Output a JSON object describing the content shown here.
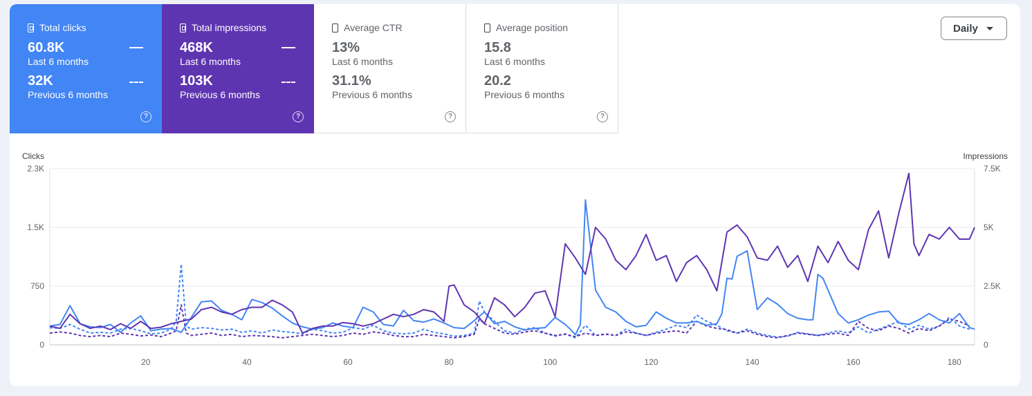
{
  "metrics": {
    "clicks": {
      "title": "Total clicks",
      "value": "60.8K",
      "period": "Last 6 months",
      "prev_value": "32K",
      "prev_period": "Previous 6 months",
      "help": "?"
    },
    "impressions": {
      "title": "Total impressions",
      "value": "468K",
      "period": "Last 6 months",
      "prev_value": "103K",
      "prev_period": "Previous 6 months",
      "help": "?"
    },
    "ctr": {
      "title": "Average CTR",
      "value": "13%",
      "period": "Last 6 months",
      "prev_value": "31.1%",
      "prev_period": "Previous 6 months",
      "help": "?"
    },
    "position": {
      "title": "Average position",
      "value": "15.8",
      "period": "Last 6 months",
      "prev_value": "20.2",
      "prev_period": "Previous 6 months",
      "help": "?"
    }
  },
  "controls": {
    "granularity": "Daily"
  },
  "colors": {
    "clicks": "#4285f4",
    "impressions": "#5e35b1",
    "grid": "#e8eaed",
    "axis_text": "#5f6368"
  },
  "chart_data": {
    "type": "line",
    "left_axis_label": "Clicks",
    "right_axis_label": "Impressions",
    "left_ticks": [
      {
        "value": 0,
        "label": "0"
      },
      {
        "value": 750,
        "label": "750"
      },
      {
        "value": 1500,
        "label": "1.5K"
      },
      {
        "value": 2250,
        "label": "2.3K"
      }
    ],
    "right_ticks": [
      {
        "value": 0,
        "label": "0"
      },
      {
        "value": 2500,
        "label": "2.5K"
      },
      {
        "value": 5000,
        "label": "5K"
      },
      {
        "value": 7500,
        "label": "7.5K"
      }
    ],
    "x_ticks": [
      20,
      40,
      60,
      80,
      100,
      120,
      140,
      160,
      180
    ],
    "xlim": [
      1,
      184
    ],
    "ylim_left": [
      0,
      2250
    ],
    "ylim_right": [
      0,
      7500
    ],
    "series": [
      {
        "name": "Clicks (Last 6 months)",
        "axis": "left",
        "style": "solid",
        "color": "#4285f4",
        "x": [
          1,
          3,
          5,
          7,
          9,
          11,
          13,
          15,
          17,
          19,
          21,
          23,
          25,
          27,
          29,
          31,
          33,
          35,
          37,
          39,
          41,
          43,
          45,
          47,
          49,
          51,
          53,
          55,
          57,
          59,
          61,
          63,
          65,
          67,
          69,
          71,
          73,
          75,
          77,
          79,
          81,
          83,
          85,
          87,
          89,
          91,
          93,
          95,
          97,
          99,
          101,
          103,
          104,
          105,
          106,
          107,
          109,
          111,
          113,
          115,
          117,
          119,
          121,
          123,
          125,
          127,
          129,
          131,
          133,
          134,
          135,
          136,
          137,
          139,
          141,
          143,
          145,
          147,
          149,
          151,
          152,
          153,
          154,
          155,
          157,
          159,
          161,
          163,
          165,
          167,
          169,
          171,
          173,
          175,
          177,
          179,
          181,
          183,
          184
        ],
        "y": [
          240,
          260,
          500,
          270,
          230,
          220,
          260,
          160,
          280,
          370,
          180,
          200,
          210,
          160,
          350,
          550,
          560,
          440,
          390,
          320,
          580,
          540,
          470,
          370,
          280,
          230,
          200,
          220,
          280,
          240,
          220,
          480,
          420,
          260,
          240,
          440,
          310,
          290,
          330,
          280,
          220,
          210,
          310,
          420,
          270,
          300,
          230,
          190,
          210,
          220,
          350,
          260,
          200,
          130,
          260,
          1850,
          700,
          480,
          420,
          300,
          230,
          250,
          420,
          340,
          280,
          280,
          300,
          250,
          270,
          400,
          850,
          840,
          1130,
          1200,
          450,
          600,
          520,
          400,
          340,
          320,
          320,
          900,
          850,
          700,
          400,
          280,
          320,
          380,
          420,
          430,
          280,
          260,
          320,
          400,
          320,
          280,
          400,
          220,
          200
        ]
      },
      {
        "name": "Impressions (Last 6 months)",
        "axis": "right",
        "style": "solid",
        "color": "#5e35b1",
        "x": [
          1,
          3,
          5,
          7,
          9,
          11,
          13,
          15,
          17,
          19,
          21,
          23,
          25,
          27,
          29,
          31,
          33,
          35,
          37,
          39,
          41,
          43,
          45,
          47,
          49,
          51,
          53,
          55,
          57,
          59,
          61,
          63,
          65,
          67,
          69,
          71,
          73,
          75,
          77,
          79,
          80,
          81,
          83,
          85,
          87,
          89,
          91,
          93,
          95,
          97,
          99,
          101,
          103,
          105,
          107,
          109,
          111,
          113,
          115,
          117,
          119,
          121,
          123,
          125,
          127,
          129,
          131,
          133,
          135,
          137,
          139,
          141,
          143,
          145,
          147,
          149,
          151,
          153,
          155,
          157,
          159,
          161,
          163,
          165,
          167,
          169,
          171,
          172,
          173,
          175,
          177,
          179,
          181,
          183,
          184
        ],
        "y": [
          800,
          700,
          1300,
          900,
          700,
          800,
          650,
          900,
          700,
          1000,
          700,
          750,
          900,
          1000,
          1100,
          1500,
          1600,
          1400,
          1300,
          1500,
          1600,
          1600,
          1900,
          1700,
          1400,
          500,
          700,
          800,
          800,
          950,
          900,
          800,
          900,
          1100,
          1300,
          1200,
          1300,
          1500,
          1400,
          1000,
          2500,
          2550,
          1700,
          1400,
          900,
          2000,
          1700,
          1200,
          1600,
          2200,
          2300,
          1200,
          4300,
          3700,
          3000,
          5000,
          4500,
          3600,
          3200,
          3800,
          4700,
          3600,
          3800,
          2700,
          3500,
          3800,
          3200,
          2300,
          4800,
          5100,
          4600,
          3700,
          3600,
          4200,
          3300,
          3800,
          2700,
          4200,
          3500,
          4400,
          3600,
          3200,
          4900,
          5700,
          3700,
          5600,
          7300,
          4300,
          3800,
          4700,
          4500,
          5000,
          4500,
          4500,
          5000
        ]
      },
      {
        "name": "Clicks (Previous 6 months)",
        "axis": "left",
        "style": "dashed",
        "color": "#4285f4",
        "x": [
          1,
          3,
          5,
          7,
          9,
          11,
          13,
          15,
          17,
          19,
          21,
          23,
          25,
          26,
          27,
          28,
          29,
          31,
          33,
          35,
          37,
          39,
          41,
          43,
          45,
          47,
          49,
          51,
          53,
          55,
          57,
          59,
          61,
          63,
          65,
          67,
          69,
          71,
          73,
          75,
          77,
          79,
          81,
          83,
          85,
          86,
          87,
          89,
          91,
          93,
          95,
          97,
          99,
          101,
          103,
          105,
          107,
          109,
          111,
          113,
          115,
          117,
          119,
          121,
          123,
          125,
          127,
          129,
          131,
          133,
          135,
          137,
          139,
          141,
          143,
          145,
          147,
          149,
          151,
          153,
          155,
          157,
          159,
          161,
          163,
          165,
          167,
          169,
          171,
          173,
          175,
          177,
          179,
          181,
          183
        ],
        "y": [
          220,
          210,
          260,
          200,
          150,
          160,
          150,
          200,
          210,
          180,
          140,
          150,
          200,
          300,
          1030,
          240,
          200,
          220,
          210,
          190,
          200,
          160,
          180,
          150,
          190,
          170,
          160,
          140,
          200,
          180,
          150,
          160,
          220,
          200,
          250,
          180,
          150,
          140,
          150,
          200,
          160,
          140,
          110,
          120,
          150,
          560,
          420,
          300,
          180,
          150,
          200,
          220,
          150,
          110,
          140,
          90,
          250,
          120,
          140,
          120,
          200,
          150,
          120,
          160,
          200,
          250,
          220,
          380,
          300,
          250,
          180,
          150,
          200,
          150,
          120,
          100,
          110,
          160,
          140,
          120,
          150,
          180,
          150,
          230,
          150,
          200,
          250,
          300,
          200,
          250,
          200,
          240,
          350,
          240,
          200
        ]
      },
      {
        "name": "Impressions (Previous 6 months)",
        "axis": "right",
        "style": "dashed",
        "color": "#5e35b1",
        "x": [
          1,
          3,
          5,
          7,
          9,
          11,
          13,
          15,
          17,
          19,
          21,
          23,
          25,
          26,
          27,
          28,
          29,
          31,
          33,
          35,
          37,
          39,
          41,
          43,
          45,
          47,
          49,
          51,
          53,
          55,
          57,
          59,
          61,
          63,
          65,
          67,
          69,
          71,
          73,
          75,
          77,
          79,
          81,
          83,
          85,
          86,
          87,
          89,
          91,
          93,
          95,
          97,
          99,
          101,
          103,
          105,
          107,
          109,
          111,
          113,
          115,
          117,
          119,
          121,
          123,
          125,
          127,
          129,
          131,
          133,
          135,
          137,
          139,
          141,
          143,
          145,
          147,
          149,
          151,
          153,
          155,
          157,
          159,
          161,
          163,
          165,
          167,
          169,
          171,
          173,
          175,
          177,
          179,
          181,
          183
        ],
        "y": [
          500,
          550,
          500,
          400,
          350,
          400,
          350,
          500,
          450,
          380,
          420,
          350,
          500,
          600,
          1700,
          500,
          400,
          450,
          500,
          400,
          450,
          350,
          400,
          380,
          350,
          300,
          350,
          400,
          450,
          400,
          350,
          400,
          500,
          450,
          550,
          500,
          400,
          350,
          350,
          450,
          400,
          350,
          300,
          350,
          450,
          1100,
          900,
          700,
          500,
          450,
          550,
          600,
          500,
          400,
          450,
          350,
          500,
          400,
          450,
          400,
          550,
          500,
          400,
          500,
          550,
          600,
          500,
          1000,
          800,
          700,
          650,
          500,
          600,
          450,
          350,
          300,
          400,
          500,
          450,
          400,
          450,
          500,
          400,
          1000,
          700,
          600,
          800,
          700,
          500,
          700,
          600,
          800,
          1100,
          1000,
          800
        ]
      }
    ]
  }
}
